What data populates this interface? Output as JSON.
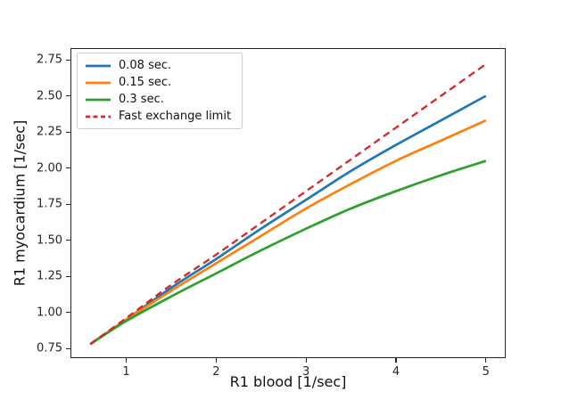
{
  "figure": {
    "background": "#ffffff",
    "spine_color": "#262626",
    "text_color": "#111111"
  },
  "chart_data": {
    "type": "line",
    "title": "",
    "xlabel": "R1 blood [1/sec]",
    "ylabel": "R1 myocardium [1/sec]",
    "xlim": [
      0.38,
      5.22
    ],
    "ylim": [
      0.683,
      2.831
    ],
    "xticks": [
      1,
      2,
      3,
      4,
      5
    ],
    "xtick_labels": [
      "1",
      "2",
      "3",
      "4",
      "5"
    ],
    "yticks": [
      0.75,
      1.0,
      1.25,
      1.5,
      1.75,
      2.0,
      2.25,
      2.5,
      2.75
    ],
    "ytick_labels": [
      "0.75",
      "1.00",
      "1.25",
      "1.50",
      "1.75",
      "2.00",
      "2.25",
      "2.50",
      "2.75"
    ],
    "grid": false,
    "legend_position": "upper-left",
    "x": [
      0.6,
      1.0,
      1.5,
      2.0,
      2.5,
      3.0,
      3.5,
      4.0,
      4.5,
      5.0
    ],
    "series": [
      {
        "name": "0.08 sec.",
        "color": "#1f77b4",
        "style": "solid",
        "values": [
          0.78,
          0.95,
          1.17,
          1.37,
          1.58,
          1.78,
          1.98,
          2.16,
          2.33,
          2.5
        ]
      },
      {
        "name": "0.15 sec.",
        "color": "#ff7f0e",
        "style": "solid",
        "values": [
          0.78,
          0.95,
          1.15,
          1.34,
          1.53,
          1.72,
          1.89,
          2.05,
          2.19,
          2.33
        ]
      },
      {
        "name": "0.3 sec.",
        "color": "#2ca02c",
        "style": "solid",
        "values": [
          0.78,
          0.94,
          1.11,
          1.27,
          1.43,
          1.58,
          1.72,
          1.84,
          1.95,
          2.05
        ]
      },
      {
        "name": "Fast exchange limit",
        "color": "#d62728",
        "style": "dashed",
        "values": [
          0.78,
          0.96,
          1.19,
          1.4,
          1.62,
          1.84,
          2.06,
          2.28,
          2.5,
          2.72
        ]
      }
    ]
  }
}
